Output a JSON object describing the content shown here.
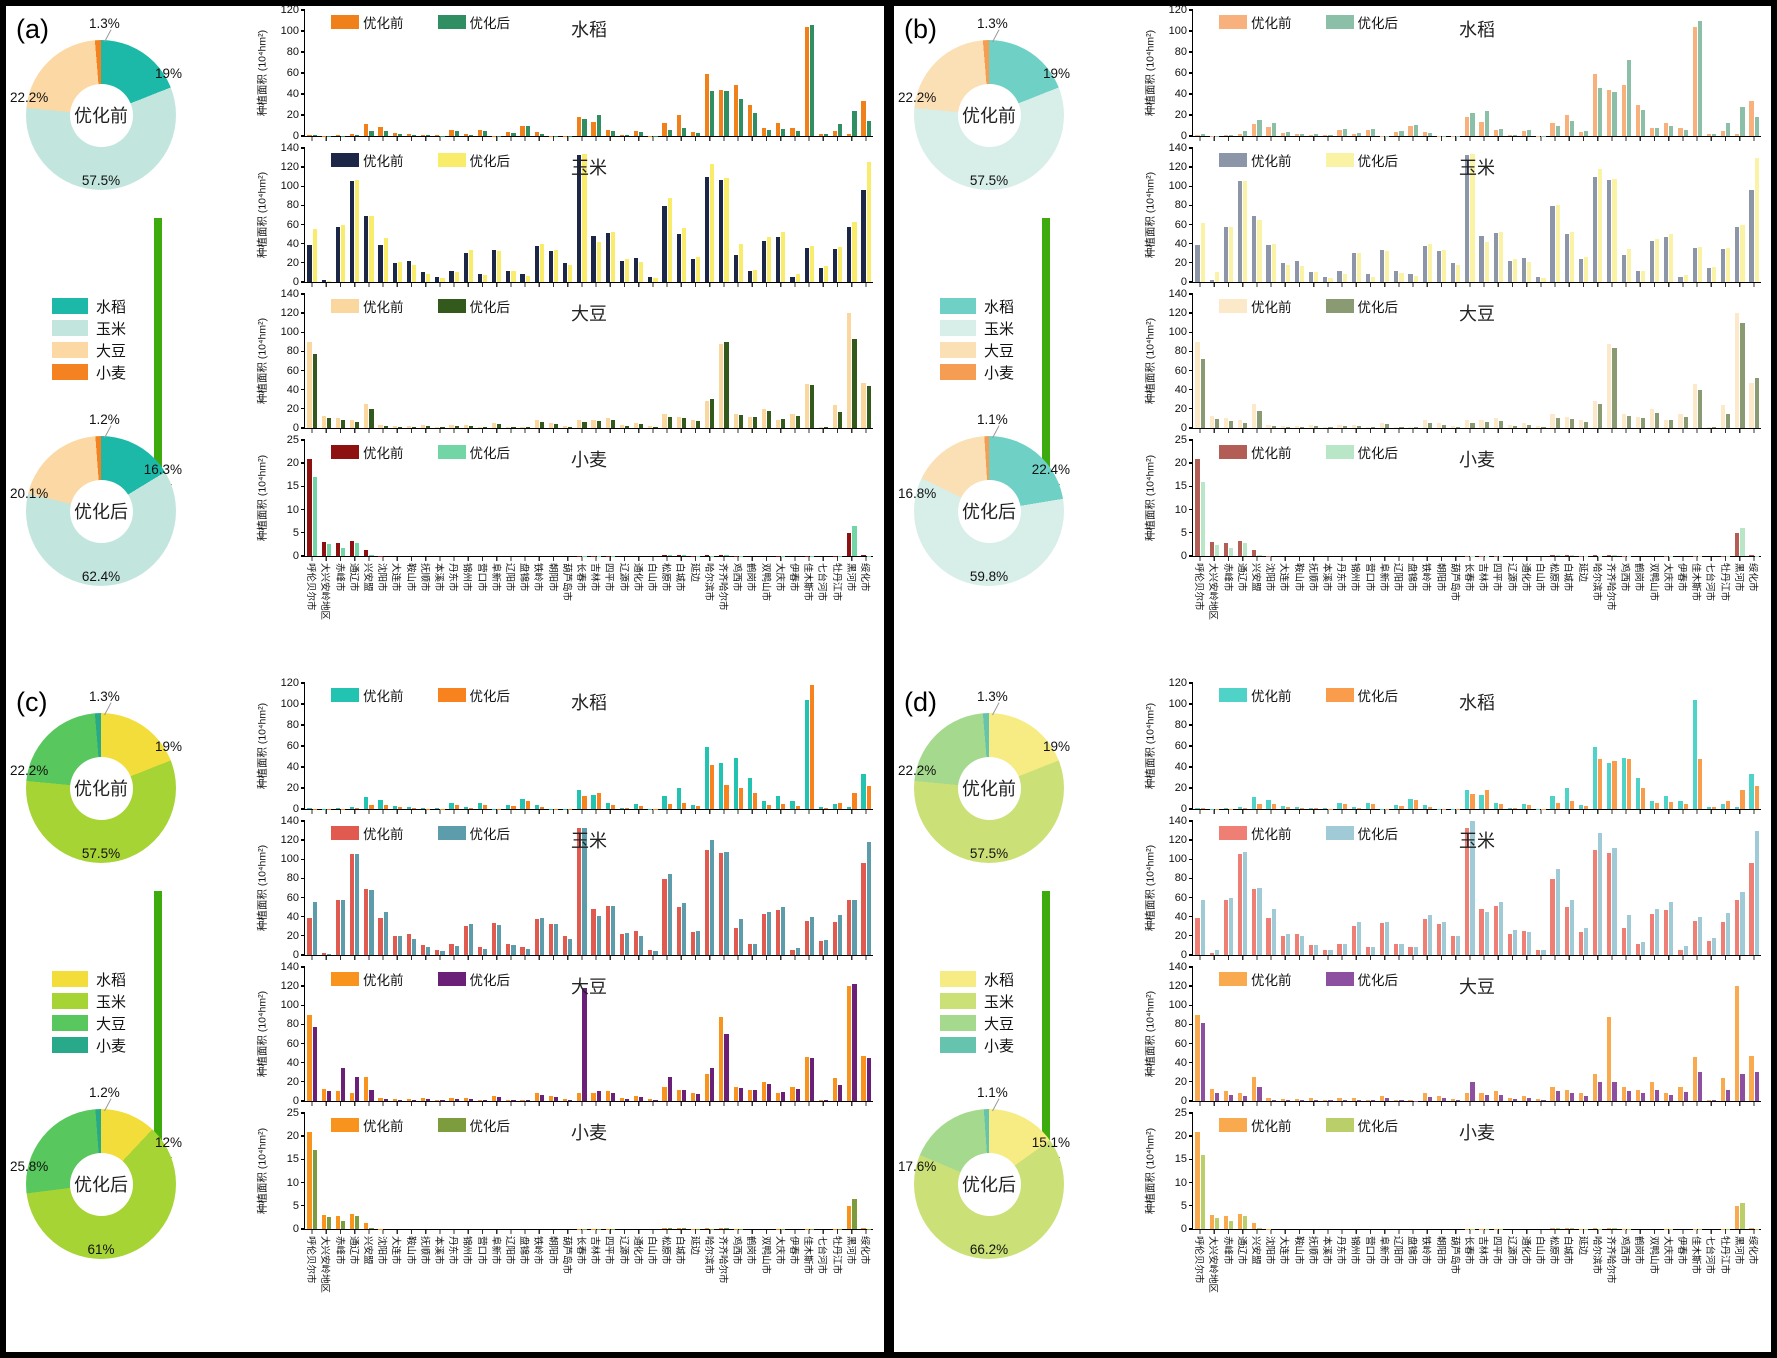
{
  "chart_data": {
    "type": "bar",
    "subtype": "grouped-bar-panels-with-donuts",
    "ylabel": "种植面积 (10⁴hm²)",
    "unit": "10⁴hm²",
    "legend_before": "优化前",
    "legend_after": "优化后",
    "donut_before_title": "优化前",
    "donut_after_title": "优化后",
    "crops_legend": [
      "水稻",
      "玉米",
      "大豆",
      "小麦"
    ],
    "arrow_color": "#3dab0e",
    "cities": [
      "呼伦贝尔市",
      "大兴安岭地区",
      "赤峰市",
      "通辽市",
      "兴安盟",
      "沈阳市",
      "大连市",
      "鞍山市",
      "抚顺市",
      "本溪市",
      "丹东市",
      "锦州市",
      "营口市",
      "阜新市",
      "辽阳市",
      "盘锦市",
      "铁岭市",
      "朝阳市",
      "葫芦岛市",
      "长春市",
      "吉林市",
      "四平市",
      "辽源市",
      "通化市",
      "白山市",
      "松原市",
      "白城市",
      "延边",
      "哈尔滨市",
      "齐齐哈尔市",
      "鸡西市",
      "鹤岗市",
      "双鸭山市",
      "大庆市",
      "伊春市",
      "佳木斯市",
      "七台河市",
      "牡丹江市",
      "黑河市",
      "绥化市"
    ],
    "crops": [
      {
        "name": "水稻",
        "ylim": [
          0,
          120
        ],
        "ystep": 20,
        "before": [
          1,
          0.3,
          0.5,
          2,
          11,
          9,
          3,
          1.5,
          1,
          0.5,
          6,
          2,
          6,
          0.3,
          4,
          10,
          4,
          0.3,
          0.3,
          18,
          13,
          6,
          1,
          5,
          0.3,
          12,
          20,
          4,
          59,
          44,
          49,
          30,
          8,
          12,
          8,
          104,
          2,
          5,
          2,
          33
        ]
      },
      {
        "name": "玉米",
        "ylim": [
          0,
          140
        ],
        "ystep": 20,
        "before": [
          39,
          2,
          58,
          106,
          69,
          39,
          20,
          22,
          10,
          5,
          12,
          30,
          8,
          33,
          12,
          8,
          38,
          32,
          20,
          133,
          48,
          51,
          22,
          25,
          5,
          79,
          50,
          24,
          110,
          107,
          28,
          12,
          43,
          47,
          5,
          36,
          15,
          35,
          57,
          96
        ]
      },
      {
        "name": "大豆",
        "ylim": [
          0,
          140
        ],
        "ystep": 20,
        "before": [
          90,
          13,
          10,
          8,
          25,
          3,
          2,
          2,
          3,
          1.5,
          3,
          3,
          1,
          5,
          1.5,
          1,
          8,
          5,
          2,
          8,
          8,
          10,
          3,
          5,
          2,
          15,
          12,
          8,
          28,
          88,
          15,
          12,
          20,
          8,
          15,
          46,
          1,
          24,
          120,
          47
        ]
      },
      {
        "name": "小麦",
        "ylim": [
          0,
          25
        ],
        "ystep": 5,
        "before": [
          21,
          3,
          2.8,
          3.3,
          1.2,
          0.1,
          0,
          0,
          0,
          0,
          0,
          0,
          0,
          0,
          0,
          0,
          0,
          0,
          0,
          0.1,
          0.1,
          0.1,
          0,
          0,
          0,
          0.3,
          0.3,
          0.1,
          0.2,
          0.3,
          0.1,
          0,
          0,
          0.1,
          0,
          0.1,
          0,
          0.1,
          5,
          0.2
        ]
      }
    ],
    "panels": [
      {
        "id": "a",
        "label": "(a)",
        "crop_colors": [
          "#1cb9a8",
          "#c2e6dd",
          "#fbd8a4",
          "#f58220"
        ],
        "donut_before": {
          "title": "优化前",
          "values": [
            19,
            57.5,
            22.2,
            1.3
          ],
          "labels": [
            "19%",
            "57.5%",
            "22.2%",
            "1.3%"
          ]
        },
        "donut_after": {
          "title": "优化后",
          "values": [
            16.3,
            62.4,
            20.1,
            1.2
          ],
          "labels": [
            "16.3%",
            "62.4%",
            "20.1%",
            "1.2%"
          ]
        },
        "series_colors": [
          [
            "#f08019",
            "#2f8f63"
          ],
          [
            "#1c2748",
            "#f8ec6a"
          ],
          [
            "#f9d79e",
            "#33591c"
          ],
          [
            "#8e1111",
            "#72d5a5"
          ]
        ],
        "after": [
          [
            0.5,
            0.2,
            0.3,
            1,
            5,
            5,
            2,
            1,
            0.5,
            0.3,
            5,
            1,
            5,
            0.2,
            3,
            10,
            2,
            0.2,
            0.2,
            16,
            20,
            5,
            0.8,
            4,
            0.2,
            6,
            8,
            3,
            43,
            43,
            35,
            22,
            6,
            7,
            5,
            106,
            1.5,
            11,
            24,
            14
          ],
          [
            55,
            1,
            60,
            107,
            69,
            46,
            21,
            18,
            8,
            4,
            10,
            33,
            7,
            32,
            11,
            6,
            40,
            33,
            18,
            134,
            42,
            52,
            24,
            21,
            4,
            88,
            56,
            26,
            123,
            109,
            40,
            13,
            47,
            52,
            8,
            38,
            17,
            37,
            63,
            125
          ],
          [
            77,
            10,
            8,
            6,
            20,
            2,
            1.5,
            1.5,
            2,
            1,
            2,
            2,
            0.8,
            4,
            1,
            0.7,
            6,
            4,
            1.5,
            6,
            7,
            8,
            2.5,
            4,
            1.5,
            12,
            10,
            7,
            30,
            90,
            14,
            12,
            18,
            9,
            13,
            45,
            1,
            17,
            93,
            44
          ],
          [
            17,
            2.5,
            1.8,
            2.9,
            0.3,
            0,
            0,
            0,
            0,
            0,
            0,
            0,
            0,
            0,
            0,
            0,
            0,
            0,
            0,
            0.1,
            0.1,
            0.1,
            0,
            0,
            0,
            0.2,
            0.2,
            0.1,
            0.1,
            0.2,
            0.1,
            0,
            0,
            0.1,
            0,
            0.1,
            0,
            0.1,
            6.5,
            0.1
          ]
        ]
      },
      {
        "id": "b",
        "label": "(b)",
        "crop_colors": [
          "#6fd1c5",
          "#d8eee8",
          "#fbdfb5",
          "#f59e53"
        ],
        "donut_before": {
          "title": "优化前",
          "values": [
            19,
            57.5,
            22.2,
            1.3
          ],
          "labels": [
            "19%",
            "57.5%",
            "22.2%",
            "1.3%"
          ]
        },
        "donut_after": {
          "title": "优化后",
          "values": [
            22.4,
            59.8,
            16.8,
            1.1
          ],
          "labels": [
            "22.4%",
            "59.8%",
            "16.8%",
            "1.1%"
          ]
        },
        "series_colors": [
          [
            "#f8b17c",
            "#8cbfa8"
          ],
          [
            "#8d95a9",
            "#faf3a6"
          ],
          [
            "#fce9ca",
            "#8a9b74"
          ],
          [
            "#b25e56",
            "#b9e6c6"
          ]
        ],
        "after": [
          [
            1.5,
            0.3,
            0.8,
            5,
            15,
            12,
            4,
            2,
            1.5,
            0.8,
            7,
            2.5,
            7,
            0.4,
            5,
            10.5,
            3,
            0.3,
            0.3,
            22,
            24,
            7,
            1.2,
            6,
            0.3,
            10,
            14,
            5,
            46,
            42,
            72,
            25,
            8,
            10,
            6,
            110,
            2,
            12,
            28,
            18
          ],
          [
            62,
            10,
            57,
            106,
            65,
            40,
            18,
            17,
            10,
            4,
            8,
            30,
            5,
            32,
            9,
            6,
            40,
            33,
            18,
            134,
            42,
            52,
            24,
            21,
            4,
            80,
            52,
            26,
            118,
            108,
            35,
            12,
            45,
            50,
            7,
            37,
            16,
            36,
            60,
            130
          ],
          [
            72,
            9,
            7,
            5,
            18,
            2,
            1.5,
            1.5,
            2,
            1,
            2,
            2,
            0.8,
            4,
            1,
            0.7,
            5,
            3.5,
            1.5,
            5,
            6,
            7,
            2,
            3.5,
            1.2,
            10,
            9,
            6,
            25,
            84,
            13,
            10,
            16,
            8,
            11,
            40,
            1,
            15,
            110,
            52
          ],
          [
            16,
            2.3,
            1.7,
            2.7,
            0.3,
            0,
            0,
            0,
            0,
            0,
            0,
            0,
            0,
            0,
            0,
            0,
            0,
            0,
            0,
            0.1,
            0.1,
            0.1,
            0,
            0,
            0,
            0.2,
            0.2,
            0.1,
            0.1,
            0.2,
            0.1,
            0,
            0,
            0.1,
            0,
            0.1,
            0,
            0.1,
            6,
            0.1
          ]
        ]
      },
      {
        "id": "c",
        "label": "(c)",
        "crop_colors": [
          "#f2dd3a",
          "#a6d434",
          "#58c75e",
          "#27a98a"
        ],
        "donut_before": {
          "title": "优化前",
          "values": [
            19,
            57.5,
            22.2,
            1.3
          ],
          "labels": [
            "19%",
            "57.5%",
            "22.2%",
            "1.3%"
          ]
        },
        "donut_after": {
          "title": "优化后",
          "values": [
            12,
            61,
            25.8,
            1.2
          ],
          "labels": [
            "12%",
            "61%",
            "25.8%",
            "1.2%"
          ]
        },
        "series_colors": [
          [
            "#23c3b2",
            "#f8821d"
          ],
          [
            "#e05a50",
            "#5d9cab"
          ],
          [
            "#f8931d",
            "#6b2078"
          ],
          [
            "#f8931d",
            "#7c9c3e"
          ]
        ],
        "after": [
          [
            0.4,
            0.1,
            0.2,
            0.8,
            4,
            4,
            1.5,
            0.8,
            0.4,
            0.2,
            4,
            0.8,
            4,
            0.15,
            2.5,
            8,
            1.5,
            0.15,
            0.15,
            12,
            15,
            4,
            0.6,
            3,
            0.15,
            5,
            6,
            2.5,
            42,
            23,
            20,
            15,
            4,
            5,
            3,
            118,
            1,
            6,
            15,
            22
          ],
          [
            55,
            1,
            58,
            106,
            68,
            45,
            20,
            17,
            8,
            4,
            9,
            32,
            6,
            31,
            10,
            6,
            39,
            32,
            17,
            133,
            41,
            51,
            23,
            20,
            4,
            85,
            54,
            25,
            120,
            108,
            38,
            12,
            45,
            50,
            7,
            40,
            16,
            42,
            58,
            118
          ],
          [
            77,
            10,
            35,
            25,
            12,
            2,
            1.5,
            1.5,
            2,
            1,
            2,
            2,
            0.8,
            4,
            1,
            0.7,
            6,
            4,
            1.5,
            118,
            10,
            8,
            2.5,
            4,
            1.5,
            25,
            12,
            7,
            35,
            70,
            14,
            12,
            18,
            9,
            13,
            45,
            1,
            17,
            122,
            45
          ],
          [
            17,
            2.5,
            1.8,
            2.9,
            0.3,
            0,
            0,
            0,
            0,
            0,
            0,
            0,
            0,
            0,
            0,
            0,
            0,
            0,
            0,
            0.1,
            0.1,
            0.1,
            0,
            0,
            0,
            0.2,
            0.2,
            0.1,
            0.1,
            0.2,
            0.1,
            0,
            0,
            0.1,
            0,
            0.1,
            0,
            0.1,
            6.5,
            0.1
          ]
        ]
      },
      {
        "id": "d",
        "label": "(d)",
        "crop_colors": [
          "#f6ec83",
          "#cbe077",
          "#a5da8e",
          "#66c4ae"
        ],
        "donut_before": {
          "title": "优化前",
          "values": [
            19,
            57.5,
            22.2,
            1.3
          ],
          "labels": [
            "19%",
            "57.5%",
            "22.2%",
            "1.3%"
          ]
        },
        "donut_after": {
          "title": "优化后",
          "values": [
            15.1,
            66.2,
            17.6,
            1.1
          ],
          "labels": [
            "15.1%",
            "66.2%",
            "17.6%",
            "1.1%"
          ]
        },
        "series_colors": [
          [
            "#4fd3c9",
            "#f99c4b"
          ],
          [
            "#ef7f74",
            "#a0cbd6"
          ],
          [
            "#f9a94e",
            "#8d50a0"
          ],
          [
            "#f9a94e",
            "#bace6a"
          ]
        ],
        "after": [
          [
            0.5,
            0.2,
            0.3,
            1,
            5,
            5,
            2,
            1,
            0.5,
            0.3,
            5,
            1,
            5,
            0.2,
            3,
            9,
            2,
            0.2,
            0.2,
            14,
            18,
            5,
            0.8,
            4,
            0.2,
            6,
            8,
            3,
            48,
            46,
            48,
            20,
            6,
            7,
            5,
            48,
            1.5,
            8,
            18,
            22
          ],
          [
            58,
            5,
            60,
            108,
            70,
            48,
            22,
            20,
            10,
            5,
            12,
            35,
            8,
            35,
            12,
            8,
            42,
            35,
            20,
            140,
            45,
            55,
            26,
            24,
            5,
            90,
            58,
            28,
            128,
            112,
            42,
            14,
            48,
            55,
            9,
            40,
            18,
            44,
            66,
            130
          ],
          [
            82,
            8,
            6,
            5,
            15,
            1.5,
            1,
            1,
            1.5,
            0.8,
            1.5,
            1.5,
            0.6,
            3,
            0.8,
            0.5,
            4,
            3,
            1,
            20,
            6,
            6,
            2,
            3,
            1,
            10,
            8,
            5,
            20,
            20,
            10,
            8,
            12,
            6,
            9,
            30,
            0.8,
            12,
            28,
            30
          ],
          [
            16,
            2.3,
            1.7,
            2.7,
            0.3,
            0,
            0,
            0,
            0,
            0,
            0,
            0,
            0,
            0,
            0,
            0,
            0,
            0,
            0,
            0.1,
            0.1,
            0.1,
            0,
            0,
            0,
            0.2,
            0.2,
            0.1,
            0.1,
            0.2,
            0.1,
            0,
            0,
            0.1,
            0,
            0.1,
            0,
            0.1,
            5.5,
            0.1
          ]
        ]
      }
    ]
  }
}
